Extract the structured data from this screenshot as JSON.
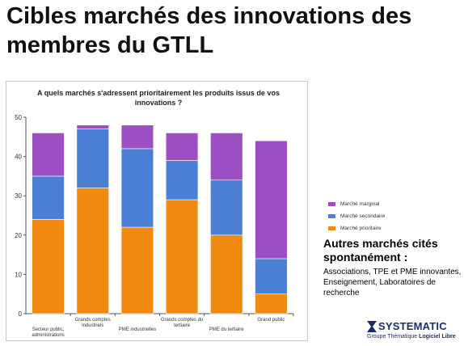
{
  "slide": {
    "title": "Cibles marchés des innovations des membres du GTLL"
  },
  "chart_data": {
    "type": "bar",
    "stacked": true,
    "title": "A quels marchés s'adressent prioritairement les produits issus de vos innovations ?",
    "categories": [
      "Secteur public, administrations",
      "Grands comptes industriels",
      "PME industrielles",
      "Grands comptes du tertiaire",
      "PME du tertiaire",
      "Grand public"
    ],
    "series": [
      {
        "name": "Marché prioritaire",
        "color": "#f08a10",
        "values": [
          24,
          32,
          22,
          29,
          20,
          5
        ]
      },
      {
        "name": "Marché secondaire",
        "color": "#4a7fd4",
        "values": [
          11,
          15,
          20,
          10,
          14,
          9
        ]
      },
      {
        "name": "Marché marginal",
        "color": "#9b4fc2",
        "values": [
          11,
          1,
          6,
          7,
          12,
          30
        ]
      }
    ],
    "ylim": [
      0,
      50
    ],
    "yticks": [
      0,
      10,
      20,
      30,
      40,
      50
    ],
    "grid": false,
    "legend_position": "right"
  },
  "legend": {
    "items": [
      {
        "label": "Marché marginal",
        "color": "#9b4fc2"
      },
      {
        "label": "Marché secondaire",
        "color": "#4a7fd4"
      },
      {
        "label": "Marché prioritaire",
        "color": "#f08a10"
      }
    ]
  },
  "other_markets": {
    "heading": "Autres marchés cités spontanément :",
    "body": "Associations, TPE et PME innovantes, Enseignement, Laboratoires de recherche"
  },
  "logo": {
    "name": "SYSTEMATIC",
    "subtitle_prefix": "Groupe Thématique",
    "subtitle_bold": "Logiciel Libre",
    "color": "#1c2d6b"
  }
}
